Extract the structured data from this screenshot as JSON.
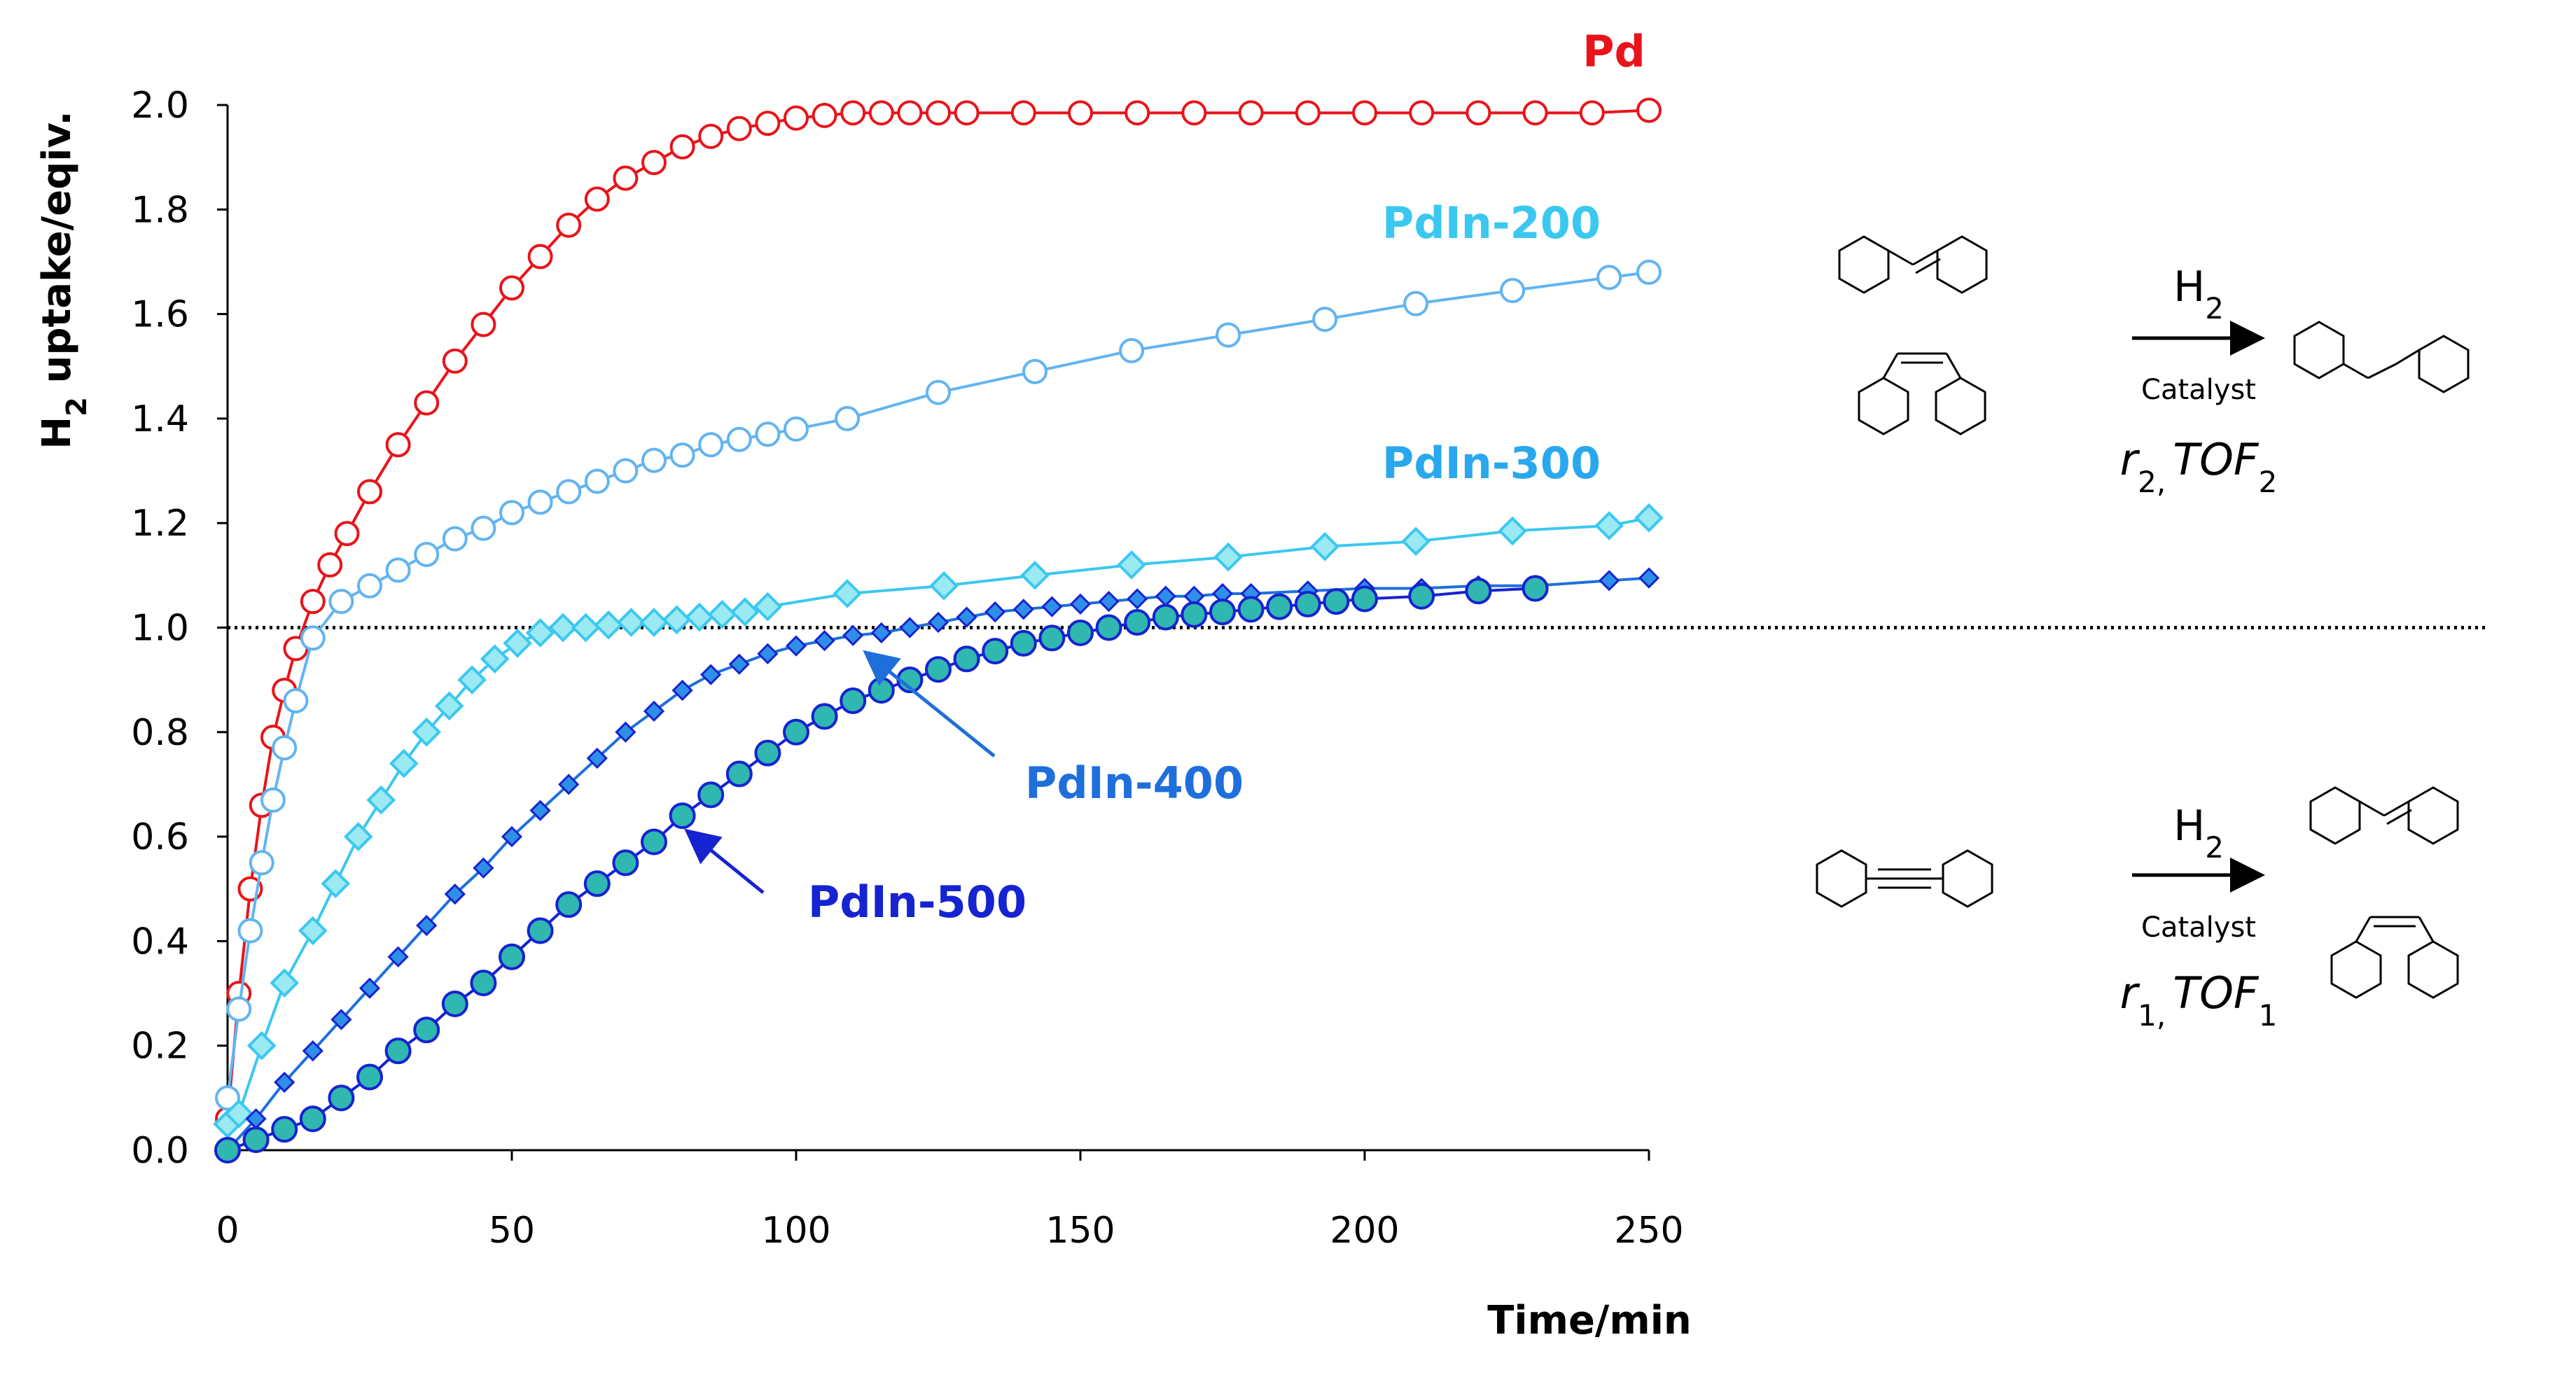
{
  "chart_data": {
    "type": "line",
    "title": "",
    "xlabel": "Time/min",
    "ylabel": "H2 uptake/eqiv.",
    "ylabel_main": "H",
    "ylabel_sub": "2",
    "ylabel_rest": " uptake/eqiv.",
    "xlim": [
      0,
      250
    ],
    "ylim": [
      0,
      2.0
    ],
    "x_ticks": [
      "0",
      "50",
      "100",
      "150",
      "200",
      "250"
    ],
    "y_ticks": [
      "0.0",
      "0.2",
      "0.4",
      "0.6",
      "0.8",
      "1.0",
      "1.2",
      "1.4",
      "1.6",
      "1.8",
      "2.0"
    ],
    "reference_line": {
      "y": 1.0,
      "style": "dotted"
    },
    "series": [
      {
        "name": "Pd",
        "color": "#e8141a",
        "marker": "open-circle",
        "x": [
          0,
          2,
          4,
          6,
          8,
          10,
          12,
          15,
          18,
          21,
          25,
          30,
          35,
          40,
          45,
          50,
          55,
          60,
          65,
          70,
          75,
          80,
          85,
          90,
          95,
          100,
          105,
          110,
          115,
          120,
          125,
          130,
          140,
          150,
          160,
          170,
          180,
          190,
          200,
          210,
          220,
          230,
          240,
          250
        ],
        "values": [
          0.06,
          0.3,
          0.5,
          0.66,
          0.79,
          0.88,
          0.96,
          1.05,
          1.12,
          1.18,
          1.26,
          1.35,
          1.43,
          1.51,
          1.58,
          1.65,
          1.71,
          1.77,
          1.82,
          1.86,
          1.89,
          1.92,
          1.94,
          1.955,
          1.965,
          1.975,
          1.98,
          1.985,
          1.985,
          1.985,
          1.985,
          1.985,
          1.985,
          1.985,
          1.985,
          1.985,
          1.985,
          1.985,
          1.985,
          1.985,
          1.985,
          1.985,
          1.985,
          1.99
        ]
      },
      {
        "name": "PdIn-200",
        "color": "#62b4f0",
        "marker": "open-circle",
        "x": [
          0,
          2,
          4,
          6,
          8,
          10,
          12,
          15,
          20,
          25,
          30,
          35,
          40,
          45,
          50,
          55,
          60,
          65,
          70,
          75,
          80,
          85,
          90,
          95,
          100,
          109,
          125,
          142,
          159,
          176,
          193,
          209,
          226,
          243,
          250
        ],
        "values": [
          0.1,
          0.27,
          0.42,
          0.55,
          0.67,
          0.77,
          0.86,
          0.98,
          1.05,
          1.08,
          1.11,
          1.14,
          1.17,
          1.19,
          1.22,
          1.24,
          1.26,
          1.28,
          1.3,
          1.32,
          1.33,
          1.35,
          1.36,
          1.37,
          1.38,
          1.4,
          1.45,
          1.49,
          1.53,
          1.56,
          1.59,
          1.62,
          1.645,
          1.67,
          1.68
        ]
      },
      {
        "name": "PdIn-300",
        "color": "#3bc8f0",
        "marker": "diamond",
        "x": [
          0,
          2,
          6,
          10,
          15,
          19,
          23,
          27,
          31,
          35,
          39,
          43,
          47,
          51,
          55,
          59,
          63,
          67,
          71,
          75,
          79,
          83,
          87,
          91,
          95,
          109,
          126,
          142,
          159,
          176,
          193,
          209,
          226,
          243,
          250
        ],
        "values": [
          0.05,
          0.07,
          0.2,
          0.32,
          0.42,
          0.51,
          0.6,
          0.67,
          0.74,
          0.8,
          0.85,
          0.9,
          0.94,
          0.97,
          0.99,
          1.0,
          1.0,
          1.005,
          1.01,
          1.01,
          1.015,
          1.02,
          1.025,
          1.03,
          1.04,
          1.065,
          1.08,
          1.1,
          1.12,
          1.135,
          1.155,
          1.165,
          1.185,
          1.195,
          1.21
        ]
      },
      {
        "name": "PdIn-400",
        "color": "#1e6fdc",
        "marker": "filled-diamond",
        "x": [
          0,
          5,
          10,
          15,
          20,
          25,
          30,
          35,
          40,
          45,
          50,
          55,
          60,
          65,
          70,
          75,
          80,
          85,
          90,
          95,
          100,
          105,
          110,
          115,
          120,
          125,
          130,
          135,
          140,
          145,
          150,
          155,
          160,
          165,
          170,
          175,
          180,
          190,
          200,
          210,
          220,
          230,
          243,
          250
        ],
        "values": [
          0.0,
          0.06,
          0.13,
          0.19,
          0.25,
          0.31,
          0.37,
          0.43,
          0.49,
          0.54,
          0.6,
          0.65,
          0.7,
          0.75,
          0.8,
          0.84,
          0.88,
          0.91,
          0.93,
          0.95,
          0.965,
          0.975,
          0.985,
          0.99,
          1.0,
          1.01,
          1.02,
          1.03,
          1.035,
          1.04,
          1.045,
          1.05,
          1.055,
          1.06,
          1.06,
          1.065,
          1.065,
          1.07,
          1.075,
          1.075,
          1.08,
          1.08,
          1.09,
          1.095
        ]
      },
      {
        "name": "PdIn-500",
        "color": "#1523d0",
        "marker": "filled-circle",
        "x": [
          0,
          5,
          10,
          15,
          20,
          25,
          30,
          35,
          40,
          45,
          50,
          55,
          60,
          65,
          70,
          75,
          80,
          85,
          90,
          95,
          100,
          105,
          110,
          115,
          120,
          125,
          130,
          135,
          140,
          145,
          150,
          155,
          160,
          165,
          170,
          175,
          180,
          185,
          190,
          195,
          200,
          210,
          220,
          230
        ],
        "values": [
          0.0,
          0.02,
          0.04,
          0.06,
          0.1,
          0.14,
          0.19,
          0.23,
          0.28,
          0.32,
          0.37,
          0.42,
          0.47,
          0.51,
          0.55,
          0.59,
          0.64,
          0.68,
          0.72,
          0.76,
          0.8,
          0.83,
          0.86,
          0.88,
          0.9,
          0.92,
          0.94,
          0.955,
          0.97,
          0.98,
          0.99,
          1.0,
          1.01,
          1.02,
          1.025,
          1.03,
          1.035,
          1.04,
          1.045,
          1.05,
          1.055,
          1.06,
          1.07,
          1.075
        ]
      }
    ],
    "series_labels": [
      "Pd",
      "PdIn-200",
      "PdIn-300",
      "PdIn-400",
      "PdIn-500"
    ]
  },
  "scheme": {
    "top": {
      "reagent": "H2",
      "reagent_main": "H",
      "reagent_sub": "2",
      "catalyst": "Catalyst",
      "rate_r": "r",
      "rate_r_sub": "2,",
      "rate_tof": "TOF",
      "rate_tof_sub": "2"
    },
    "bottom": {
      "reagent": "H2",
      "reagent_main": "H",
      "reagent_sub": "2",
      "catalyst": "Catalyst",
      "rate_r": "r",
      "rate_r_sub": "1,",
      "rate_tof": "TOF",
      "rate_tof_sub": "1"
    }
  }
}
